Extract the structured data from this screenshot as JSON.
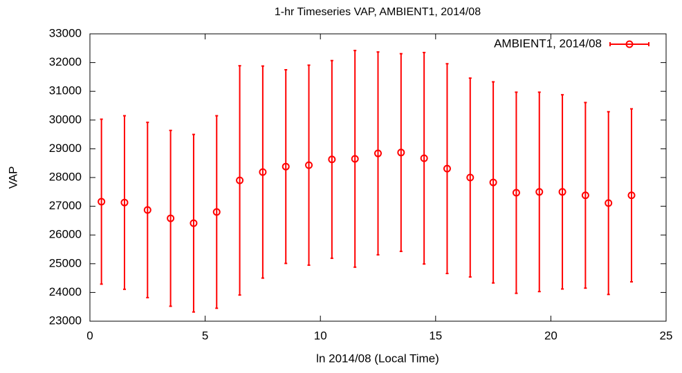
{
  "chart_data": {
    "type": "errorbar",
    "title": "1-hr Timeseries VAP, AMBIENT1, 2014/08",
    "xlabel": "ln 2014/08 (Local Time)",
    "ylabel": "VAP",
    "x": [
      0.5,
      1.5,
      2.5,
      3.5,
      4.5,
      5.5,
      6.5,
      7.5,
      8.5,
      9.5,
      10.5,
      11.5,
      12.5,
      13.5,
      14.5,
      15.5,
      16.5,
      17.5,
      18.5,
      19.5,
      20.5,
      21.5,
      22.5,
      23.5
    ],
    "series": [
      {
        "name": "AMBIENT1, 2014/08",
        "color": "#ff0000",
        "values": [
          27160,
          27130,
          26870,
          26580,
          26410,
          26800,
          27900,
          28190,
          28380,
          28430,
          28630,
          28650,
          28840,
          28870,
          28670,
          28310,
          28000,
          27830,
          27470,
          27500,
          27500,
          27380,
          27110,
          27380
        ],
        "errors": [
          2870,
          3020,
          3050,
          3060,
          3090,
          3350,
          3990,
          3690,
          3370,
          3480,
          3440,
          3770,
          3530,
          3440,
          3680,
          3650,
          3460,
          3500,
          3500,
          3470,
          3380,
          3230,
          3180,
          3010
        ]
      }
    ],
    "xlim": [
      0,
      25
    ],
    "xticks": [
      0,
      5,
      10,
      15,
      20,
      25
    ],
    "ylim": [
      23000,
      33000
    ],
    "yticks": [
      23000,
      24000,
      25000,
      26000,
      27000,
      28000,
      29000,
      30000,
      31000,
      32000,
      33000
    ],
    "legend": "top-right"
  }
}
